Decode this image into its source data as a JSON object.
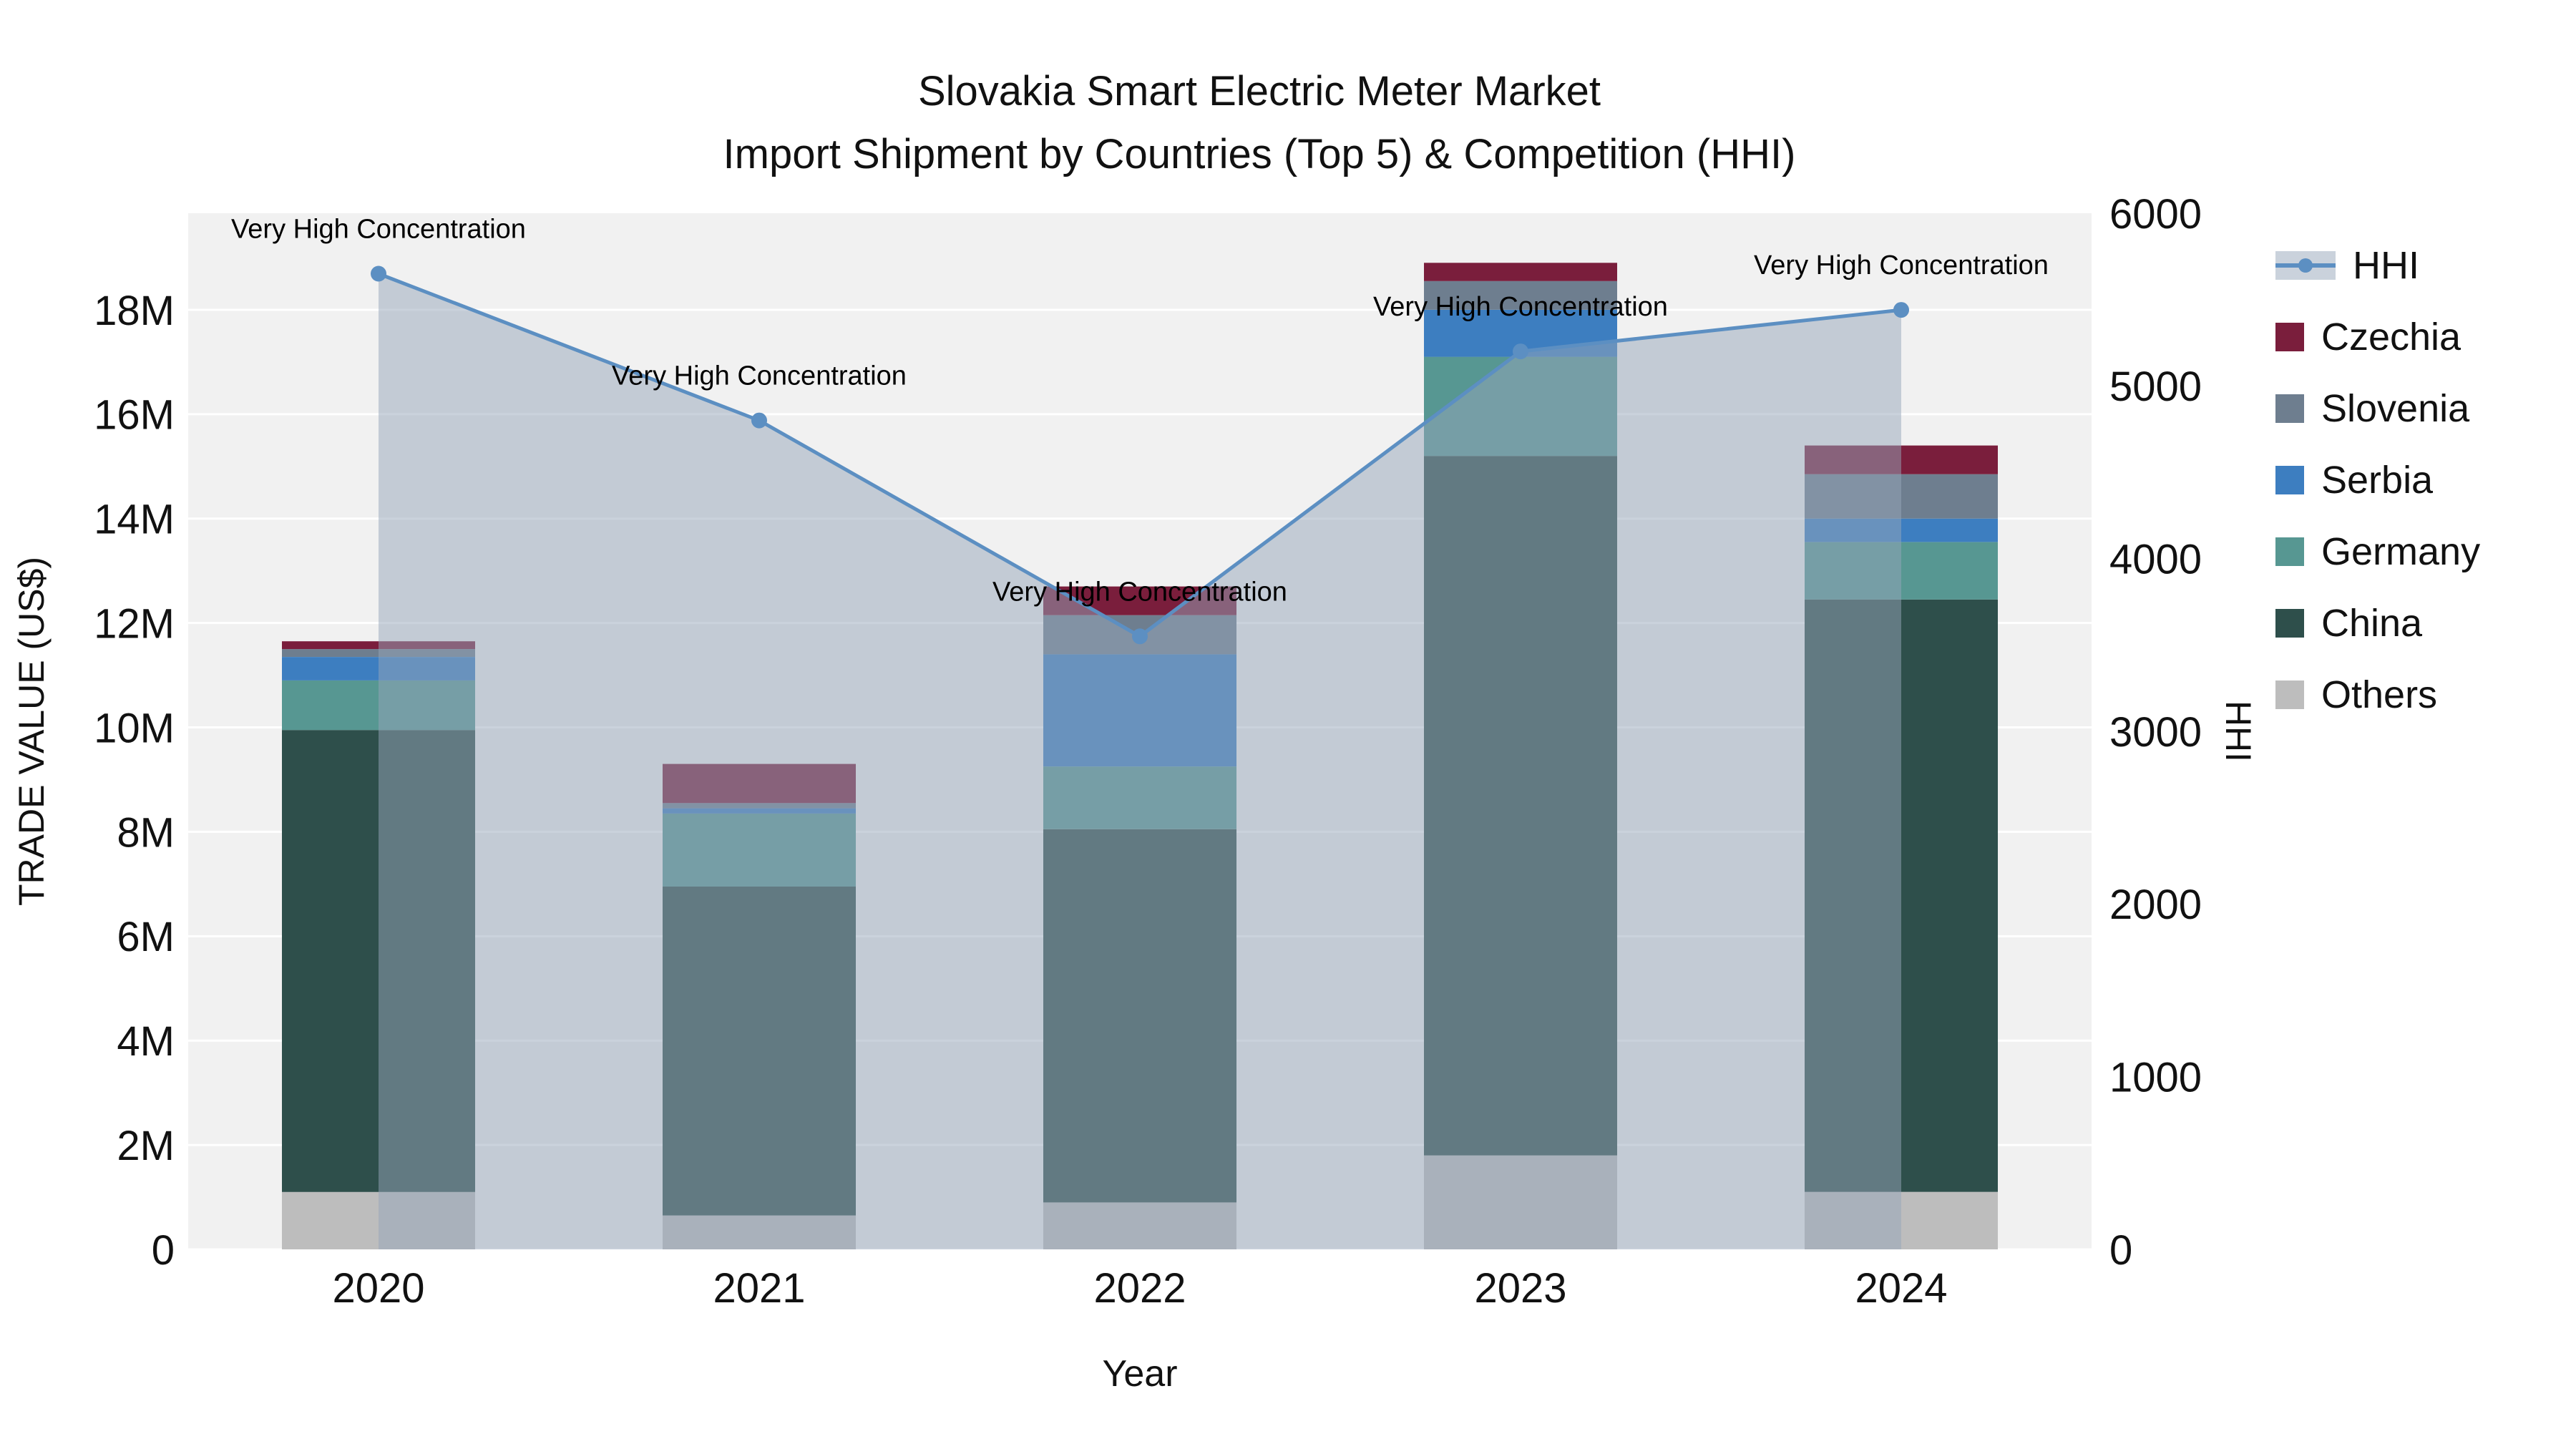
{
  "chart_data": {
    "type": "bar+line",
    "title": "Slovakia Smart Electric Meter Market",
    "subtitle": "Import Shipment by Countries (Top 5) & Competition (HHI)",
    "xlabel": "Year",
    "ylabel": "TRADE VALUE (US$)",
    "y2label": "HHI",
    "categories": [
      "2020",
      "2021",
      "2022",
      "2023",
      "2024"
    ],
    "stack_series": [
      {
        "name": "Others",
        "color": "#bdbdbd",
        "values": [
          1100000,
          650000,
          900000,
          1800000,
          1100000
        ]
      },
      {
        "name": "China",
        "color": "#2e4f4b",
        "values": [
          8850000,
          6300000,
          7150000,
          13400000,
          11350000
        ]
      },
      {
        "name": "Germany",
        "color": "#579792",
        "values": [
          950000,
          1400000,
          1200000,
          1900000,
          1100000
        ]
      },
      {
        "name": "Serbia",
        "color": "#3d7ec0",
        "values": [
          450000,
          100000,
          2150000,
          900000,
          450000
        ]
      },
      {
        "name": "Slovenia",
        "color": "#6e7e8f",
        "values": [
          150000,
          100000,
          750000,
          550000,
          850000
        ]
      },
      {
        "name": "Czechia",
        "color": "#7a1e3c",
        "values": [
          150000,
          750000,
          550000,
          350000,
          550000
        ]
      }
    ],
    "line_series": {
      "name": "HHI",
      "axis": "right",
      "color": "#5c8fc2",
      "area_fill": "rgba(150,165,185,0.5)",
      "values": [
        5650,
        4800,
        3550,
        5200,
        5440
      ]
    },
    "annotations": [
      {
        "category": "2020",
        "text": "Very High Concentration"
      },
      {
        "category": "2021",
        "text": "Very High Concentration"
      },
      {
        "category": "2022",
        "text": "Very High Concentration"
      },
      {
        "category": "2023",
        "text": "Very High Concentration"
      },
      {
        "category": "2024",
        "text": "Very High Concentration"
      }
    ],
    "ylim": [
      0,
      19850000
    ],
    "y2lim": [
      0,
      6000
    ],
    "y_ticks": {
      "values": [
        0,
        2000000,
        4000000,
        6000000,
        8000000,
        10000000,
        12000000,
        14000000,
        16000000,
        18000000
      ],
      "labels": [
        "0",
        "2M",
        "4M",
        "6M",
        "8M",
        "10M",
        "12M",
        "14M",
        "16M",
        "18M"
      ]
    },
    "y2_ticks": {
      "values": [
        0,
        1000,
        2000,
        3000,
        4000,
        5000,
        6000
      ],
      "labels": [
        "0",
        "1000",
        "2000",
        "3000",
        "4000",
        "5000",
        "6000"
      ]
    },
    "grid": "horizontal",
    "legend_position": "top-right",
    "plot_background": "#f1f1f1"
  },
  "legend": {
    "items": [
      {
        "label": "HHI",
        "type": "line"
      },
      {
        "label": "Czechia",
        "type": "swatch"
      },
      {
        "label": "Slovenia",
        "type": "swatch"
      },
      {
        "label": "Serbia",
        "type": "swatch"
      },
      {
        "label": "Germany",
        "type": "swatch"
      },
      {
        "label": "China",
        "type": "swatch"
      },
      {
        "label": "Others",
        "type": "swatch"
      }
    ]
  }
}
